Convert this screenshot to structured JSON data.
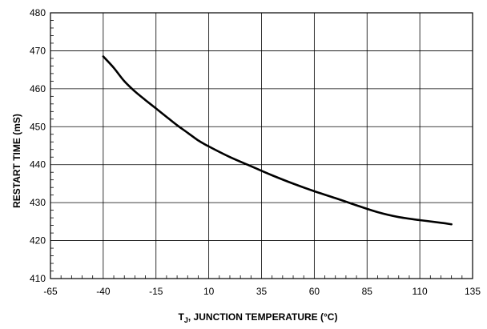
{
  "chart_data": {
    "type": "line",
    "title": "",
    "xlabel_main": "T",
    "xlabel_sub": "J",
    "xlabel_rest": ", JUNCTION TEMPERATURE (°C)",
    "ylabel": "RESTART TIME (mS)",
    "xlim": [
      -65,
      135
    ],
    "ylim": [
      410,
      480
    ],
    "x_ticks": [
      -65,
      -40,
      -15,
      10,
      35,
      60,
      85,
      110,
      135
    ],
    "y_ticks": [
      410,
      420,
      430,
      440,
      450,
      460,
      470,
      480
    ],
    "x_tick_labels": [
      "-65",
      "-40",
      "-15",
      "10",
      "35",
      "60",
      "85",
      "110",
      "135"
    ],
    "y_tick_labels": [
      "410",
      "420",
      "430",
      "440",
      "450",
      "460",
      "470",
      "480"
    ],
    "grid": true,
    "series": [
      {
        "x": [
          -40,
          -35,
          -30,
          -25,
          -20,
          -15,
          -10,
          -5,
          0,
          5,
          10,
          20,
          30,
          40,
          50,
          60,
          70,
          80,
          90,
          100,
          110,
          120,
          125
        ],
        "values": [
          468.5,
          465.5,
          462,
          459.3,
          457,
          454.8,
          452.6,
          450.4,
          448.4,
          446.4,
          444.8,
          442,
          439.6,
          437.2,
          435,
          433,
          431.2,
          429.3,
          427.5,
          426.2,
          425.4,
          424.7,
          424.3
        ]
      }
    ]
  }
}
